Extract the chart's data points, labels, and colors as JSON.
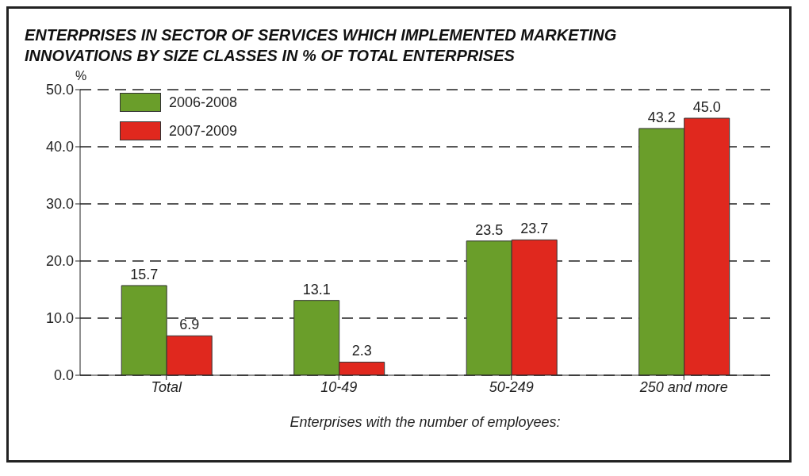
{
  "chart_data": {
    "type": "bar",
    "title": "ENTERPRISES IN SECTOR OF SERVICES WHICH IMPLEMENTED MARKETING INNOVATIONS BY SIZE CLASSES IN % OF TOTAL ENTERPRISES",
    "xlabel": "Enterprises with the number of employees:",
    "ylabel": "%",
    "categories": [
      "Total",
      "10-49",
      "50-249",
      "250 and more"
    ],
    "series": [
      {
        "name": "2006-2008",
        "color": "#6a9e2a",
        "values": [
          15.7,
          13.1,
          23.5,
          43.2
        ]
      },
      {
        "name": "2007-2009",
        "color": "#e0281e",
        "values": [
          6.9,
          2.3,
          23.7,
          45.0
        ]
      }
    ],
    "value_labels": [
      [
        "15.7",
        "13.1",
        "23.5",
        "43.2"
      ],
      [
        "6.9",
        "2.3",
        "23.7",
        "45.0"
      ]
    ],
    "ylim": [
      0,
      50
    ],
    "yticks": [
      {
        "value": 0,
        "label": "0.0"
      },
      {
        "value": 10,
        "label": "10.0"
      },
      {
        "value": 20,
        "label": "20.0"
      },
      {
        "value": 30,
        "label": "30.0"
      },
      {
        "value": 40,
        "label": "40.0"
      },
      {
        "value": 50,
        "label": "50.0"
      }
    ],
    "grid": "y",
    "legend": "top left"
  }
}
